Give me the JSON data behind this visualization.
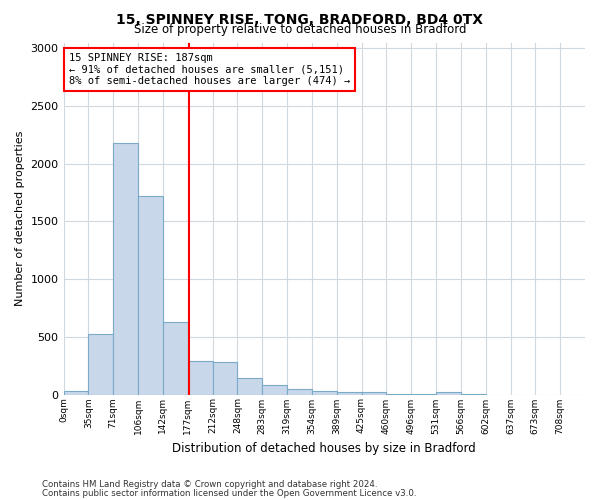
{
  "title1": "15, SPINNEY RISE, TONG, BRADFORD, BD4 0TX",
  "title2": "Size of property relative to detached houses in Bradford",
  "xlabel": "Distribution of detached houses by size in Bradford",
  "ylabel": "Number of detached properties",
  "bin_labels": [
    "0sqm",
    "35sqm",
    "71sqm",
    "106sqm",
    "142sqm",
    "177sqm",
    "212sqm",
    "248sqm",
    "283sqm",
    "319sqm",
    "354sqm",
    "389sqm",
    "425sqm",
    "460sqm",
    "496sqm",
    "531sqm",
    "566sqm",
    "602sqm",
    "637sqm",
    "673sqm",
    "708sqm"
  ],
  "bar_values": [
    30,
    525,
    2175,
    1720,
    630,
    290,
    280,
    140,
    85,
    45,
    30,
    18,
    20,
    5,
    3,
    20,
    2,
    0,
    0,
    0,
    0
  ],
  "bar_color": "#c8d8ea",
  "bar_edge_color": "#7aaac8",
  "vline_x": 177,
  "bin_width": 35,
  "annotation_text": "15 SPINNEY RISE: 187sqm\n← 91% of detached houses are smaller (5,151)\n8% of semi-detached houses are larger (474) →",
  "annotation_box_color": "white",
  "annotation_box_edge": "red",
  "vline_color": "red",
  "ylim": [
    0,
    3050
  ],
  "yticks": [
    0,
    500,
    1000,
    1500,
    2000,
    2500,
    3000
  ],
  "footer1": "Contains HM Land Registry data © Crown copyright and database right 2024.",
  "footer2": "Contains public sector information licensed under the Open Government Licence v3.0.",
  "bg_color": "#ffffff",
  "plot_bg_color": "#ffffff",
  "grid_color": "#d0d8e0"
}
